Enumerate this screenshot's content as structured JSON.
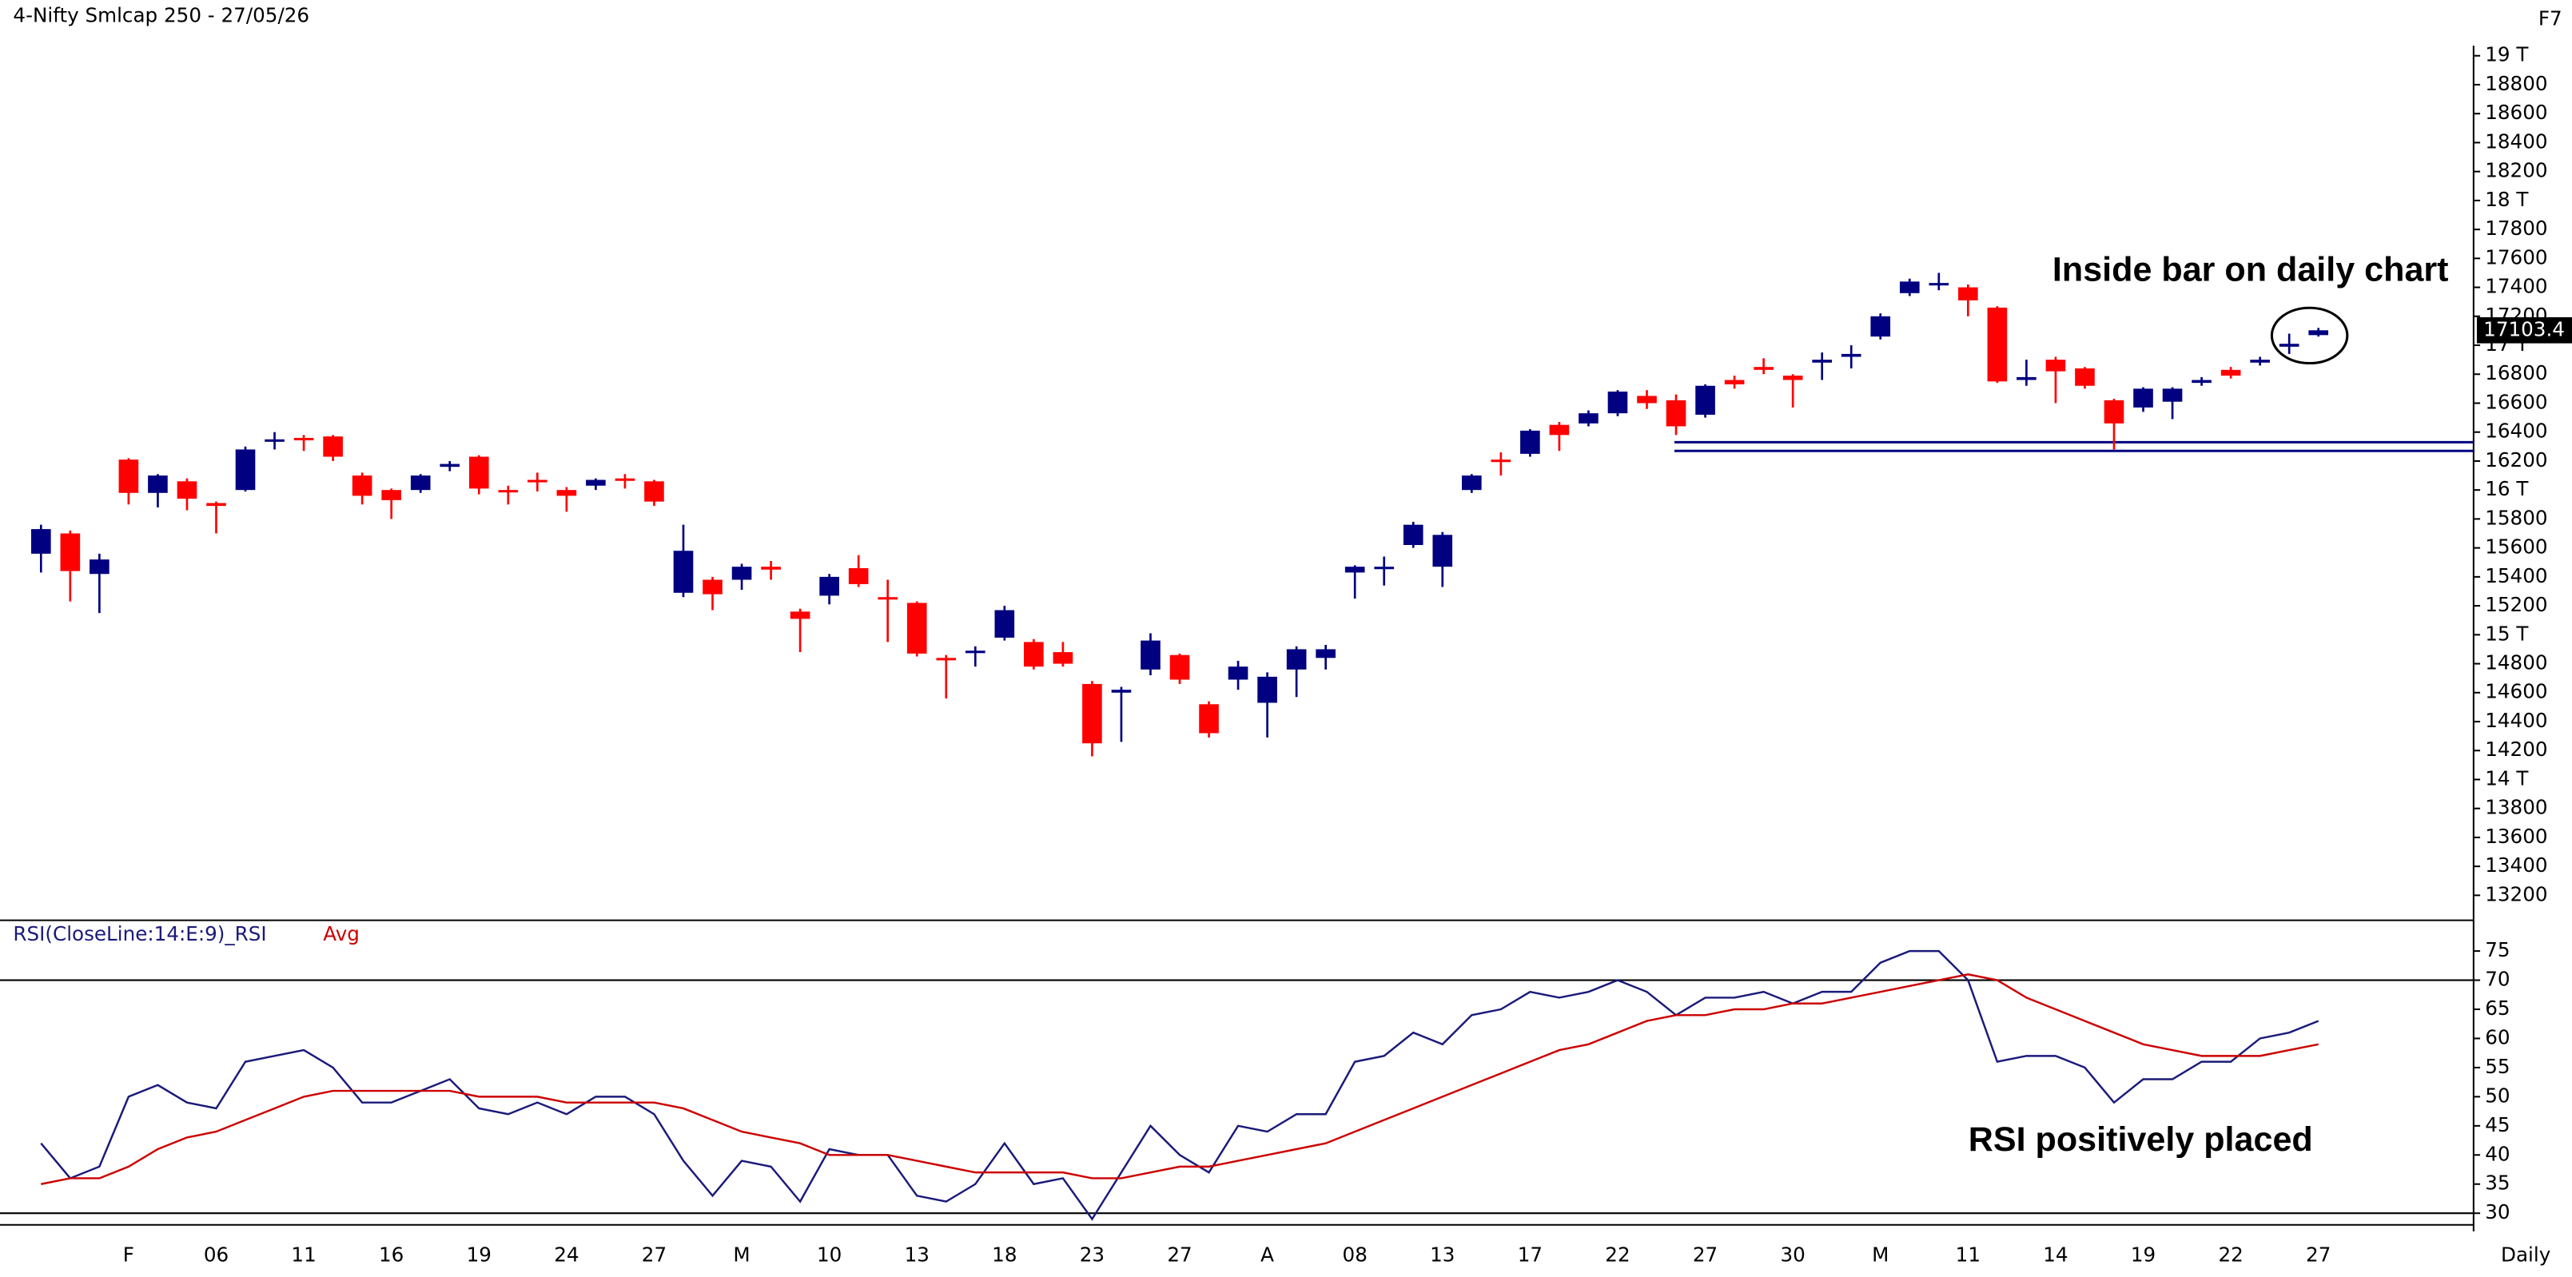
{
  "chart_data": [
    {
      "type": "candlestick",
      "title": "4-Nifty Smlcap 250 - 27/05/26",
      "corner_label": "F7",
      "period_label": "Daily",
      "categories": [
        null,
        null,
        null,
        "F",
        null,
        null,
        "06",
        null,
        null,
        "11",
        null,
        null,
        "16",
        null,
        null,
        "19",
        null,
        null,
        "24",
        null,
        null,
        "27",
        null,
        null,
        "M",
        null,
        null,
        "10",
        null,
        null,
        "13",
        null,
        null,
        "18",
        null,
        null,
        "23",
        null,
        null,
        "27",
        null,
        null,
        "A",
        null,
        null,
        "08",
        null,
        null,
        "13",
        null,
        null,
        "17",
        null,
        null,
        "22",
        null,
        null,
        "27",
        null,
        null,
        "30",
        null,
        null,
        "M",
        null,
        null,
        "11",
        null,
        null,
        "14",
        null,
        null,
        "19",
        null,
        null,
        "22",
        null,
        null,
        "27"
      ],
      "open": [
        15560,
        15700,
        15420,
        16210,
        15980,
        16060,
        15910,
        16000,
        16340,
        16360,
        16370,
        16100,
        16000,
        16000,
        16160,
        16230,
        16000,
        16070,
        16000,
        16030,
        16080,
        16060,
        15290,
        15380,
        15380,
        15470,
        15160,
        15270,
        15460,
        15260,
        15220,
        14840,
        14880,
        14980,
        14950,
        14880,
        14660,
        14600,
        14760,
        14860,
        14520,
        14690,
        14530,
        14760,
        14840,
        15430,
        15460,
        15620,
        15470,
        16000,
        16210,
        16250,
        16450,
        16460,
        16530,
        16650,
        16620,
        16520,
        16760,
        16850,
        16790,
        16880,
        16920,
        17060,
        17360,
        17430,
        17400,
        17260,
        16760,
        16900,
        16840,
        16620,
        16570,
        16610,
        16740,
        16830,
        16880,
        16990,
        17070
      ],
      "high": [
        15760,
        15720,
        15560,
        16220,
        16110,
        16080,
        15920,
        16300,
        16400,
        16380,
        16380,
        16120,
        16010,
        16110,
        16200,
        16240,
        16030,
        16120,
        16020,
        16080,
        16110,
        16070,
        15760,
        15400,
        15490,
        15510,
        15180,
        15420,
        15550,
        15380,
        15230,
        14860,
        14920,
        15200,
        14970,
        14950,
        14680,
        14640,
        15010,
        14870,
        14540,
        14820,
        14740,
        14920,
        14930,
        15480,
        15540,
        15780,
        15710,
        16110,
        16260,
        16420,
        16470,
        16550,
        16690,
        16690,
        16660,
        16730,
        16790,
        16910,
        16800,
        16950,
        17000,
        17220,
        17460,
        17500,
        17420,
        17270,
        16900,
        16920,
        16850,
        16630,
        16710,
        16710,
        16780,
        16850,
        16920,
        17080,
        17120
      ],
      "low": [
        15430,
        15230,
        15150,
        15900,
        15880,
        15860,
        15700,
        15990,
        16280,
        16270,
        16200,
        15900,
        15800,
        15980,
        16130,
        15970,
        15900,
        15990,
        15850,
        16000,
        16010,
        15890,
        15260,
        15170,
        15310,
        15380,
        14880,
        15210,
        15330,
        14950,
        14850,
        14560,
        14780,
        14960,
        14760,
        14780,
        14160,
        14260,
        14720,
        14660,
        14290,
        14620,
        14290,
        14570,
        14760,
        15250,
        15340,
        15600,
        15330,
        15980,
        16100,
        16230,
        16270,
        16440,
        16510,
        16560,
        16380,
        16500,
        16700,
        16800,
        16570,
        16760,
        16840,
        17040,
        17340,
        17380,
        17200,
        16740,
        16720,
        16600,
        16700,
        16280,
        16540,
        16490,
        16720,
        16770,
        16860,
        16940,
        17060
      ],
      "close": [
        15730,
        15440,
        15520,
        15980,
        16100,
        15940,
        15890,
        16280,
        16350,
        16350,
        16230,
        15960,
        15930,
        16100,
        16180,
        16010,
        15990,
        16060,
        15960,
        16070,
        16070,
        15920,
        15580,
        15280,
        15470,
        15450,
        15110,
        15400,
        15350,
        15250,
        14870,
        14830,
        14890,
        15170,
        14780,
        14800,
        14250,
        14620,
        14960,
        14690,
        14320,
        14780,
        14710,
        14900,
        14900,
        15470,
        15470,
        15760,
        15690,
        16100,
        16200,
        16410,
        16380,
        16530,
        16680,
        16600,
        16440,
        16720,
        16730,
        16830,
        16760,
        16900,
        16940,
        17200,
        17440,
        17430,
        17310,
        16750,
        16780,
        16820,
        16720,
        16460,
        16700,
        16700,
        16760,
        16790,
        16900,
        17010,
        17103.4
      ],
      "up_color": "#000080",
      "down_color": "#ff0000",
      "ylim": [
        13050,
        19070
      ],
      "yticks": [
        13200,
        13400,
        13600,
        13800,
        {
          "value": 14000,
          "label": "14 T"
        },
        14200,
        14400,
        14600,
        14800,
        {
          "value": 15000,
          "label": "15 T"
        },
        15200,
        15400,
        15600,
        15800,
        {
          "value": 16000,
          "label": "16 T"
        },
        16200,
        16400,
        16600,
        16800,
        {
          "value": 17000,
          "label": "17 T"
        },
        17200,
        17400,
        17600,
        17800,
        {
          "value": 18000,
          "label": "18 T"
        },
        18200,
        18400,
        18600,
        18800,
        {
          "value": 19000,
          "label": "19 T"
        }
      ],
      "support_lines": [
        16330,
        16270
      ],
      "support_color": "#000080",
      "annotations": [
        "Inside bar on daily chart",
        "RSI positively placed"
      ]
    },
    {
      "type": "line",
      "title": "RSI(CloseLine:14:E:9)_RSI",
      "series": [
        {
          "name": "RSI(CloseLine:14:E:9)_RSI",
          "color": "#1a1a7a",
          "values": [
            42,
            36,
            38,
            50,
            52,
            49,
            48,
            56,
            57,
            58,
            55,
            49,
            49,
            51,
            53,
            48,
            47,
            49,
            47,
            50,
            50,
            47,
            39,
            33,
            39,
            38,
            32,
            41,
            40,
            40,
            33,
            32,
            35,
            42,
            35,
            36,
            29,
            37,
            45,
            40,
            37,
            45,
            44,
            47,
            47,
            56,
            57,
            61,
            59,
            64,
            65,
            68,
            67,
            68,
            70,
            68,
            64,
            67,
            67,
            68,
            66,
            68,
            68,
            73,
            75,
            75,
            70,
            56,
            57,
            57,
            55,
            49,
            53,
            53,
            56,
            56,
            60,
            61,
            63
          ]
        },
        {
          "name": "Avg",
          "color": "#cc0000",
          "values": [
            35,
            36,
            36,
            38,
            41,
            43,
            44,
            46,
            48,
            50,
            51,
            51,
            51,
            51,
            51,
            50,
            50,
            50,
            49,
            49,
            49,
            49,
            48,
            46,
            44,
            43,
            42,
            40,
            40,
            40,
            39,
            38,
            37,
            37,
            37,
            37,
            36,
            36,
            37,
            38,
            38,
            39,
            40,
            41,
            42,
            44,
            46,
            48,
            50,
            52,
            54,
            56,
            58,
            59,
            61,
            63,
            64,
            64,
            65,
            65,
            66,
            66,
            67,
            68,
            69,
            70,
            71,
            70,
            67,
            65,
            63,
            61,
            59,
            58,
            57,
            57,
            57,
            58,
            59
          ]
        }
      ],
      "ylim": [
        28,
        80
      ],
      "yticks": [
        30,
        35,
        40,
        45,
        50,
        55,
        60,
        65,
        70,
        75
      ],
      "reference_lines": [
        70,
        30
      ]
    }
  ]
}
